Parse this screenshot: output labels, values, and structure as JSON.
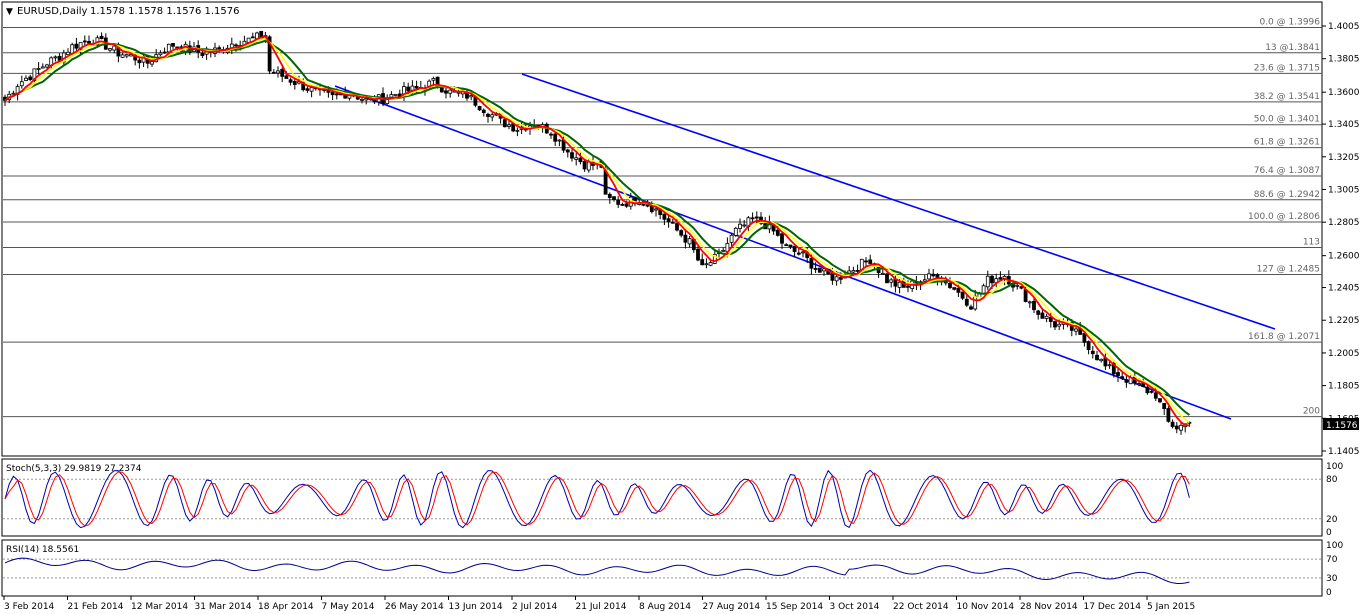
{
  "header": {
    "symbol": "EURUSD,Daily",
    "ohlc": "1.1578 1.1578 1.1576 1.1576"
  },
  "price_panel": {
    "current_price_label": "1.1576",
    "fib_levels": [
      {
        "label": "0.0 @ 1.3996",
        "price": 1.3996
      },
      {
        "label": "13 @1.3841",
        "price": 1.3841
      },
      {
        "label": "23.6 @ 1.3715",
        "price": 1.3715
      },
      {
        "label": "38.2 @ 1.3541",
        "price": 1.3541
      },
      {
        "label": "50.0 @ 1.3401",
        "price": 1.3401
      },
      {
        "label": "61.8 @ 1.3261",
        "price": 1.3261
      },
      {
        "label": "76.4 @ 1.3087",
        "price": 1.3087
      },
      {
        "label": "88.6 @ 1.2942",
        "price": 1.2942
      },
      {
        "label": "100.0 @ 1.2806",
        "price": 1.2806
      },
      {
        "label": "113",
        "price": 1.265
      },
      {
        "label": "127 @ 1.2485",
        "price": 1.2485
      },
      {
        "label": "161.8 @ 1.2071",
        "price": 1.2071
      },
      {
        "label": "200",
        "price": 1.1615
      }
    ],
    "y_ticks": [
      "1.4005",
      "1.3805",
      "1.3600",
      "1.3405",
      "1.3205",
      "1.3005",
      "1.2805",
      "1.2600",
      "1.2405",
      "1.2205",
      "1.2005",
      "1.1805",
      "1.1605",
      "1.1405"
    ]
  },
  "stoch_panel": {
    "label": "Stoch(5,3,3) 29.9819 27.2374",
    "y_ticks": [
      "100",
      "80",
      "20",
      "0"
    ]
  },
  "rsi_panel": {
    "label": "RSI(14) 18.5561",
    "y_ticks": [
      "100",
      "70",
      "30",
      "0"
    ]
  },
  "x_labels": [
    "3 Feb 2014",
    "21 Feb 2014",
    "12 Mar 2014",
    "31 Mar 2014",
    "18 Apr 2014",
    "7 May 2014",
    "26 May 2014",
    "13 Jun 2014",
    "2 Jul 2014",
    "21 Jul 2014",
    "8 Aug 2014",
    "27 Aug 2014",
    "15 Sep 2014",
    "3 Oct 2014",
    "22 Oct 2014",
    "10 Nov 2014",
    "28 Nov 2014",
    "17 Dec 2014",
    "5 Jan 2015"
  ],
  "colors": {
    "candles": "#000000",
    "ma_fast": "#ff0000",
    "ma_mid": "#ffff00",
    "ma_slow": "#006400",
    "channel": "#0000ff",
    "stoch_main": "#0000aa",
    "stoch_signal": "#ff0000",
    "rsi": "#00008b"
  },
  "chart_data": {
    "type": "candlestick",
    "instrument": "EURUSD",
    "timeframe": "Daily",
    "close_path": [
      [
        0,
        1.355
      ],
      [
        3,
        1.365
      ],
      [
        7,
        1.372
      ],
      [
        10,
        1.378
      ],
      [
        13,
        1.382
      ],
      [
        16,
        1.388
      ],
      [
        20,
        1.392
      ],
      [
        23,
        1.39
      ],
      [
        27,
        1.384
      ],
      [
        30,
        1.382
      ],
      [
        34,
        1.378
      ],
      [
        37,
        1.385
      ],
      [
        40,
        1.389
      ],
      [
        44,
        1.386
      ],
      [
        47,
        1.384
      ],
      [
        51,
        1.386
      ],
      [
        55,
        1.391
      ],
      [
        58,
        1.392
      ],
      [
        62,
        1.395
      ],
      [
        63,
        1.373
      ],
      [
        66,
        1.37
      ],
      [
        70,
        1.365
      ],
      [
        74,
        1.36
      ],
      [
        78,
        1.357
      ],
      [
        82,
        1.36
      ],
      [
        86,
        1.355
      ],
      [
        90,
        1.356
      ],
      [
        94,
        1.36
      ],
      [
        98,
        1.362
      ],
      [
        102,
        1.366
      ],
      [
        106,
        1.36
      ],
      [
        110,
        1.358
      ],
      [
        114,
        1.35
      ],
      [
        118,
        1.342
      ],
      [
        122,
        1.338
      ],
      [
        126,
        1.341
      ],
      [
        130,
        1.336
      ],
      [
        134,
        1.324
      ],
      [
        138,
        1.316
      ],
      [
        142,
        1.315
      ],
      [
        143,
        1.295
      ],
      [
        147,
        1.292
      ],
      [
        151,
        1.295
      ],
      [
        155,
        1.288
      ],
      [
        159,
        1.278
      ],
      [
        163,
        1.268
      ],
      [
        166,
        1.252
      ],
      [
        170,
        1.26
      ],
      [
        174,
        1.275
      ],
      [
        178,
        1.282
      ],
      [
        182,
        1.278
      ],
      [
        186,
        1.265
      ],
      [
        190,
        1.26
      ],
      [
        194,
        1.25
      ],
      [
        198,
        1.246
      ],
      [
        202,
        1.252
      ],
      [
        206,
        1.258
      ],
      [
        210,
        1.245
      ],
      [
        214,
        1.24
      ],
      [
        218,
        1.245
      ],
      [
        222,
        1.248
      ],
      [
        226,
        1.24
      ],
      [
        230,
        1.23
      ],
      [
        234,
        1.245
      ],
      [
        238,
        1.248
      ],
      [
        242,
        1.238
      ],
      [
        246,
        1.225
      ],
      [
        250,
        1.218
      ],
      [
        254,
        1.215
      ],
      [
        258,
        1.205
      ],
      [
        262,
        1.192
      ],
      [
        266,
        1.186
      ],
      [
        270,
        1.18
      ],
      [
        274,
        1.175
      ],
      [
        277,
        1.158
      ],
      [
        279,
        1.155
      ],
      [
        282,
        1.1576
      ]
    ]
  }
}
